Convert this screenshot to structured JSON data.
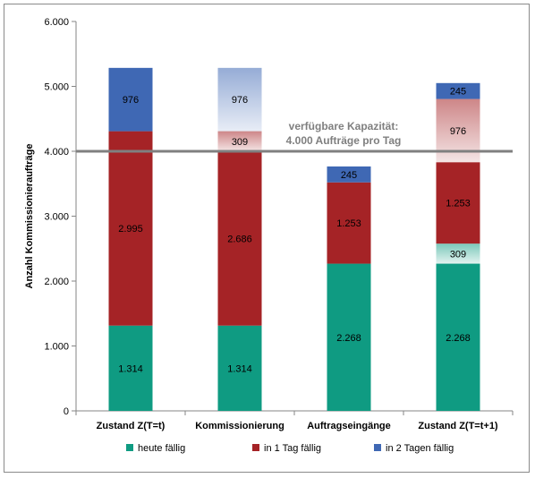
{
  "chart_data": {
    "type": "bar",
    "stacked": true,
    "ylabel": "Anzahl Kommissionieraufträge",
    "ylim": [
      0,
      6000
    ],
    "yticks": [
      0,
      1000,
      2000,
      3000,
      4000,
      5000,
      6000
    ],
    "ytick_labels": [
      "0",
      "1.000",
      "2.000",
      "3.000",
      "4.000",
      "5.000",
      "6.000"
    ],
    "categories": [
      "Zustand Z(T=t)",
      "Kommissionierung",
      "Auftragseingänge",
      "Zustand Z(T=t+1)"
    ],
    "legend_position": "bottom",
    "legend": [
      {
        "name": "heute fällig",
        "color": "#0f9b82"
      },
      {
        "name": "in 1 Tag fällig",
        "color": "#a52326"
      },
      {
        "name": "in 2 Tagen fällig",
        "color": "#3f68b4"
      }
    ],
    "bars": [
      {
        "segments": [
          {
            "series": "heute fällig",
            "value": 1314,
            "label": "1.314",
            "style": "solid"
          },
          {
            "series": "in 1 Tag fällig",
            "value": 2995,
            "label": "2.995",
            "style": "solid"
          },
          {
            "series": "in 2 Tagen fällig",
            "value": 976,
            "label": "976",
            "style": "solid"
          }
        ]
      },
      {
        "segments": [
          {
            "series": "heute fällig",
            "value": 1314,
            "label": "1.314",
            "style": "solid"
          },
          {
            "series": "in 1 Tag fällig",
            "value": 2686,
            "label": "2.686",
            "style": "solid"
          },
          {
            "series": "in 1 Tag fällig",
            "value": 309,
            "label": "309",
            "style": "faded"
          },
          {
            "series": "in 2 Tagen fällig",
            "value": 976,
            "label": "976",
            "style": "faded"
          }
        ]
      },
      {
        "segments": [
          {
            "series": "heute fällig",
            "value": 2268,
            "label": "2.268",
            "style": "solid"
          },
          {
            "series": "in 1 Tag fällig",
            "value": 1253,
            "label": "1.253",
            "style": "solid"
          },
          {
            "series": "in 2 Tagen fällig",
            "value": 245,
            "label": "245",
            "style": "solid"
          }
        ]
      },
      {
        "segments": [
          {
            "series": "heute fällig",
            "value": 2268,
            "label": "2.268",
            "style": "solid"
          },
          {
            "series": "heute fällig",
            "value": 309,
            "label": "309",
            "style": "faded"
          },
          {
            "series": "in 1 Tag fällig",
            "value": 1253,
            "label": "1.253",
            "style": "solid"
          },
          {
            "series": "in 1 Tag fällig",
            "value": 976,
            "label": "976",
            "style": "faded"
          },
          {
            "series": "in 2 Tagen fällig",
            "value": 245,
            "label": "245",
            "style": "solid"
          }
        ]
      }
    ],
    "reference_line": {
      "value": 4000,
      "color": "#808080"
    },
    "annotation": {
      "lines": [
        "verfügbare Kapazität:",
        "4.000 Aufträge pro Tag"
      ]
    }
  }
}
